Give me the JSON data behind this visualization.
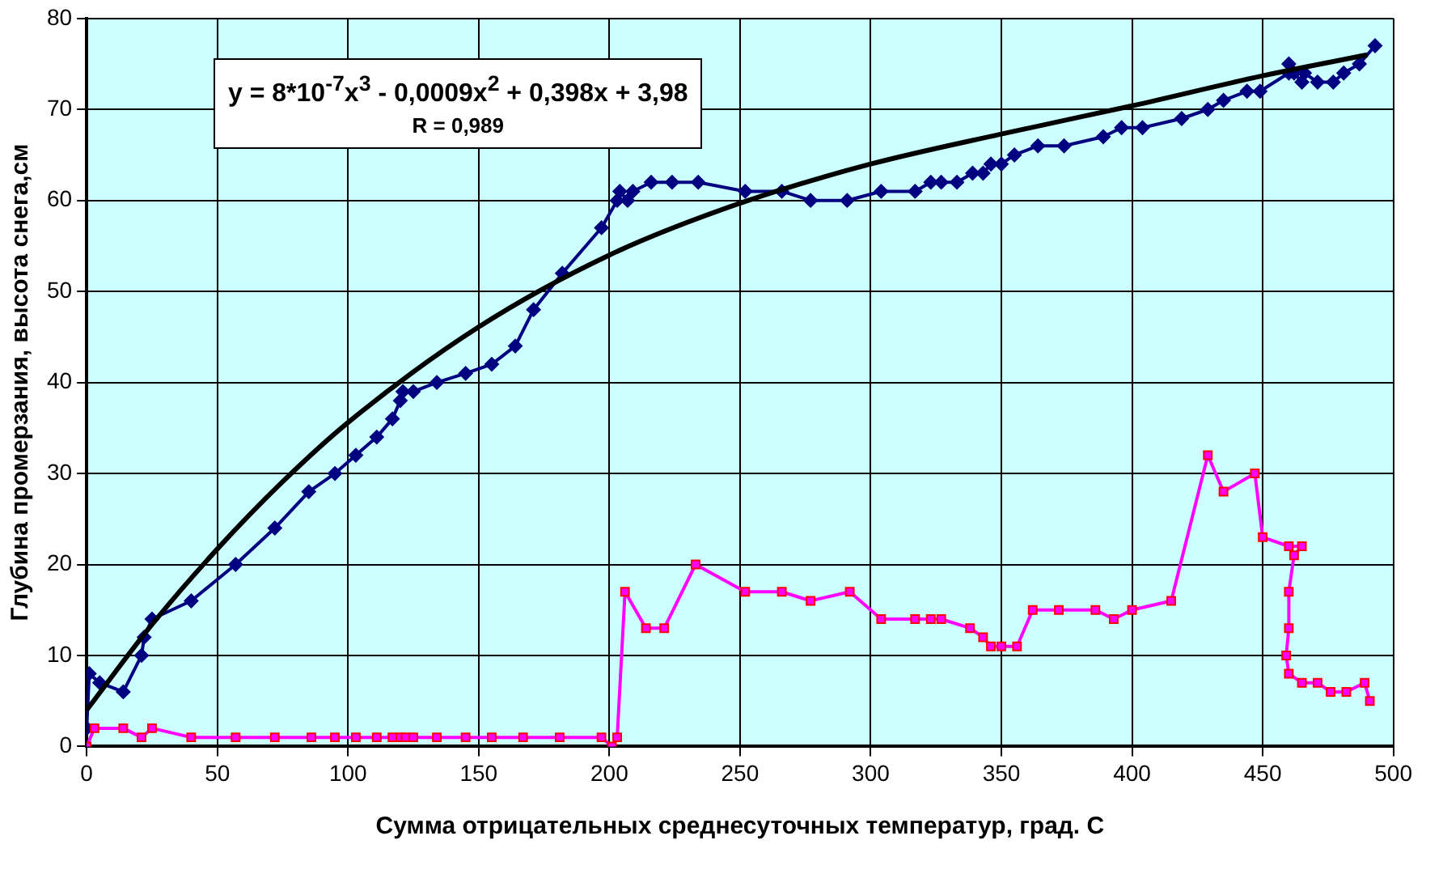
{
  "chart_data": {
    "type": "line",
    "xlabel": "Сумма отрицательных среднесуточных температур, град. С",
    "ylabel": "Глубина промерзания, высота снега,см",
    "xlim": [
      0,
      500
    ],
    "xticks": [
      0,
      50,
      100,
      150,
      200,
      250,
      300,
      350,
      400,
      450,
      500
    ],
    "ylim": [
      0,
      80
    ],
    "yticks": [
      0,
      10,
      20,
      30,
      40,
      50,
      60,
      70,
      80
    ],
    "grid": true,
    "legend": false,
    "annotations": [
      "y = 8*10$^{-7}$x$^{3}$ - 0,0009x$^{2}$ + 0,398x + 3,98",
      "R = 0,989"
    ],
    "series": [
      {
        "color": "#000080",
        "marker": "diamond",
        "x": [
          0,
          0,
          1,
          5,
          14,
          21,
          22,
          25,
          40,
          57,
          72,
          85,
          95,
          103,
          111,
          117,
          120,
          121,
          125,
          134,
          145,
          155,
          164,
          171,
          182,
          197,
          203,
          204,
          207,
          209,
          216,
          224,
          234,
          252,
          266,
          277,
          291,
          304,
          317,
          323,
          327,
          333,
          339,
          343,
          346,
          350,
          355,
          364,
          374,
          389,
          396,
          404,
          419,
          429,
          435,
          444,
          449,
          460,
          460,
          462,
          465,
          466,
          471,
          477,
          481,
          487,
          493
        ],
        "values": [
          2,
          2,
          8,
          7,
          6,
          10,
          12,
          14,
          16,
          20,
          24,
          28,
          30,
          32,
          34,
          36,
          38,
          39,
          39,
          40,
          41,
          42,
          44,
          48,
          52,
          57,
          60,
          61,
          60,
          61,
          62,
          62,
          62,
          61,
          61,
          60,
          60,
          61,
          61,
          62,
          62,
          62,
          63,
          63,
          64,
          64,
          65,
          66,
          66,
          67,
          68,
          68,
          69,
          70,
          71,
          72,
          72,
          74,
          75,
          74,
          73,
          74,
          73,
          73,
          74,
          75,
          77
        ]
      },
      {
        "color": "#ff00ff",
        "marker": "square",
        "x": [
          0,
          3,
          14,
          21,
          25,
          40,
          57,
          72,
          86,
          95,
          103,
          111,
          117,
          120,
          122,
          125,
          134,
          145,
          155,
          167,
          181,
          197,
          201,
          203,
          206,
          214,
          221,
          233,
          252,
          266,
          277,
          292,
          304,
          317,
          323,
          327,
          338,
          343,
          346,
          350,
          356,
          362,
          372,
          386,
          393,
          400,
          415,
          429,
          435,
          447,
          450,
          460,
          465,
          462,
          460,
          460,
          459,
          460,
          465,
          471,
          476,
          482,
          489,
          491
        ],
        "values": [
          0,
          2,
          2,
          1,
          2,
          1,
          1,
          1,
          1,
          1,
          1,
          1,
          1,
          1,
          1,
          1,
          1,
          1,
          1,
          1,
          1,
          1,
          0,
          1,
          17,
          13,
          13,
          20,
          17,
          17,
          16,
          17,
          14,
          14,
          14,
          14,
          13,
          12,
          11,
          11,
          11,
          15,
          15,
          15,
          14,
          15,
          16,
          32,
          28,
          30,
          23,
          22,
          22,
          21,
          17,
          13,
          10,
          8,
          7,
          7,
          6,
          6,
          7,
          5
        ]
      },
      {
        "color": "#000000",
        "marker": "none",
        "x": [
          0,
          25,
          50,
          75,
          100,
          150,
          200,
          250,
          300,
          350,
          400,
          450,
          490
        ],
        "values": [
          4,
          13.4,
          21.7,
          29.1,
          35.6,
          46.1,
          54,
          59.7,
          64,
          67.3,
          70.4,
          73.7,
          76
        ]
      }
    ]
  }
}
